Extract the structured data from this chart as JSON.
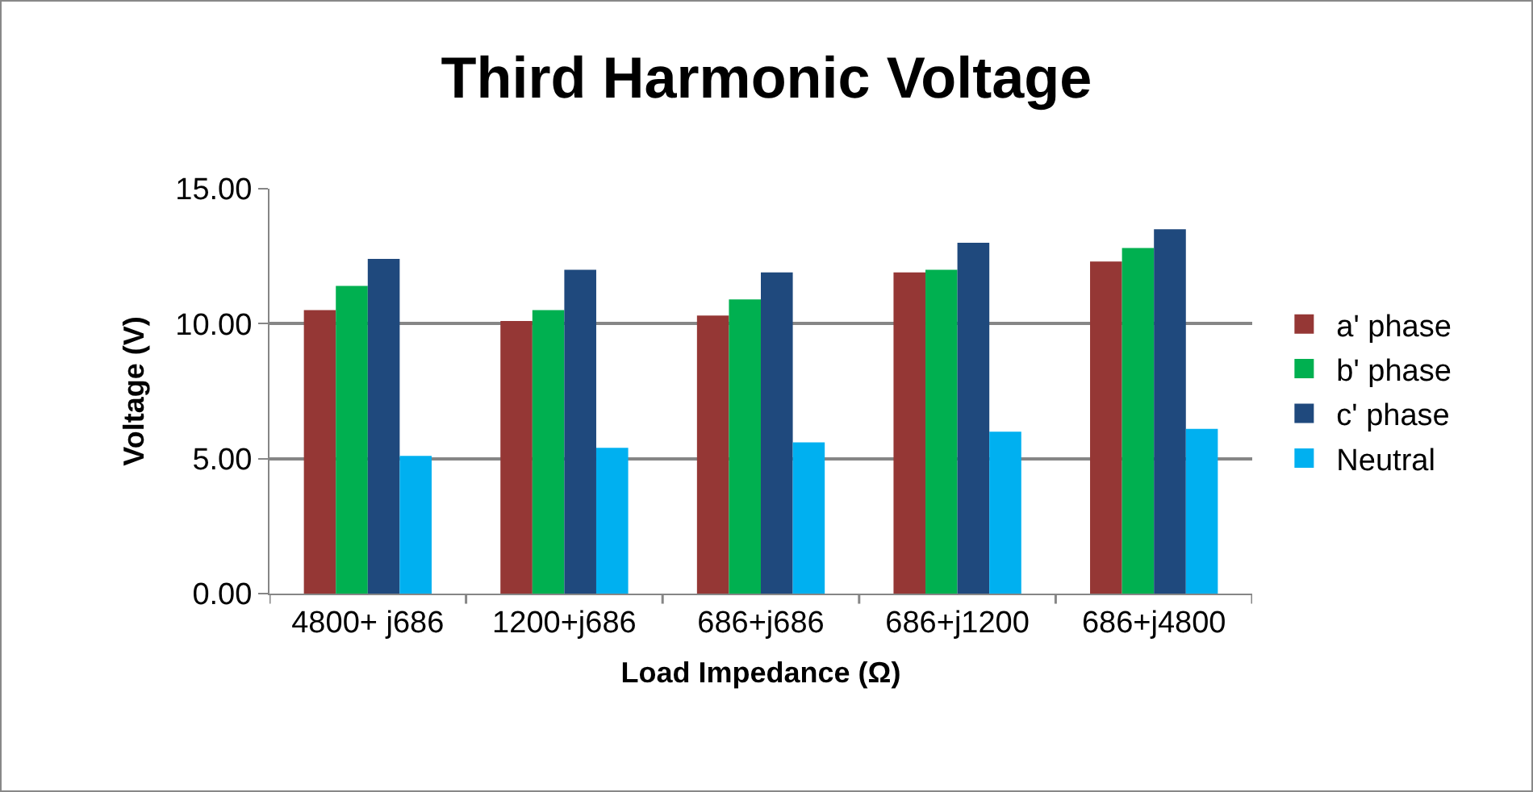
{
  "chart_data": {
    "type": "bar",
    "title": "Third Harmonic Voltage",
    "xlabel": "Load Impedance (Ω)",
    "ylabel": "Voltage (V)",
    "categories": [
      "4800+ j686",
      "1200+j686",
      "686+j686",
      "686+j1200",
      "686+j4800"
    ],
    "series": [
      {
        "name": "a' phase",
        "color": "#953735",
        "values": [
          10.5,
          10.1,
          10.3,
          11.9,
          12.3
        ]
      },
      {
        "name": "b' phase",
        "color": "#00b050",
        "values": [
          11.4,
          10.5,
          10.9,
          12.0,
          12.8
        ]
      },
      {
        "name": "c' phase",
        "color": "#1f497d",
        "values": [
          12.4,
          12.0,
          11.9,
          13.0,
          13.5
        ]
      },
      {
        "name": "Neutral",
        "color": "#00b0f0",
        "values": [
          5.1,
          5.4,
          5.6,
          6.0,
          6.1
        ]
      }
    ],
    "ylim": [
      0,
      15
    ],
    "yticks": [
      {
        "value": 0,
        "label": "0.00"
      },
      {
        "value": 5,
        "label": "5.00"
      },
      {
        "value": 10,
        "label": "10.00"
      },
      {
        "value": 15,
        "label": "15.00"
      }
    ],
    "grid": "y",
    "legend": "right"
  }
}
